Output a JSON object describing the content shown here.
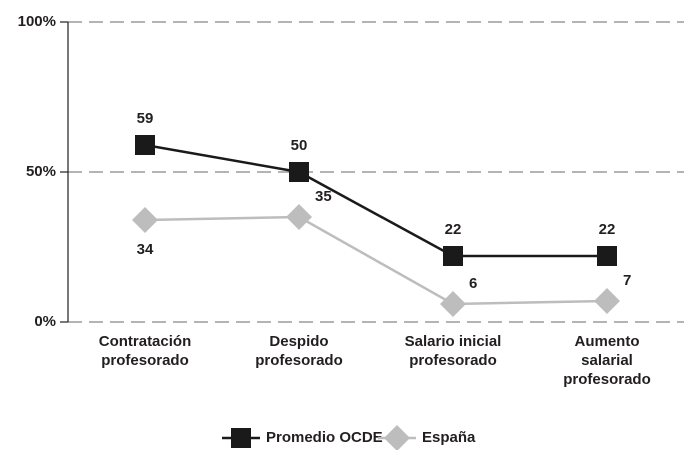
{
  "chart_data": {
    "type": "line",
    "categories": [
      [
        "Contratación",
        "profesorado"
      ],
      [
        "Despido",
        "profesorado"
      ],
      [
        "Salario inicial",
        "profesorado"
      ],
      [
        "Aumento",
        "salarial",
        "profesorado"
      ]
    ],
    "series": [
      {
        "name": "Promedio OCDE",
        "color": "#1a1a1a",
        "marker": "square",
        "values": [
          59,
          50,
          22,
          22
        ]
      },
      {
        "name": "España",
        "color": "#bdbdbd",
        "marker": "diamond",
        "values": [
          34,
          35,
          6,
          7
        ]
      }
    ],
    "ylim": [
      0,
      100
    ],
    "yticks": [
      {
        "value": 0,
        "label": "0%"
      },
      {
        "value": 50,
        "label": "50%"
      },
      {
        "value": 100,
        "label": "100%"
      }
    ],
    "grid": true,
    "legend": "bottom"
  }
}
